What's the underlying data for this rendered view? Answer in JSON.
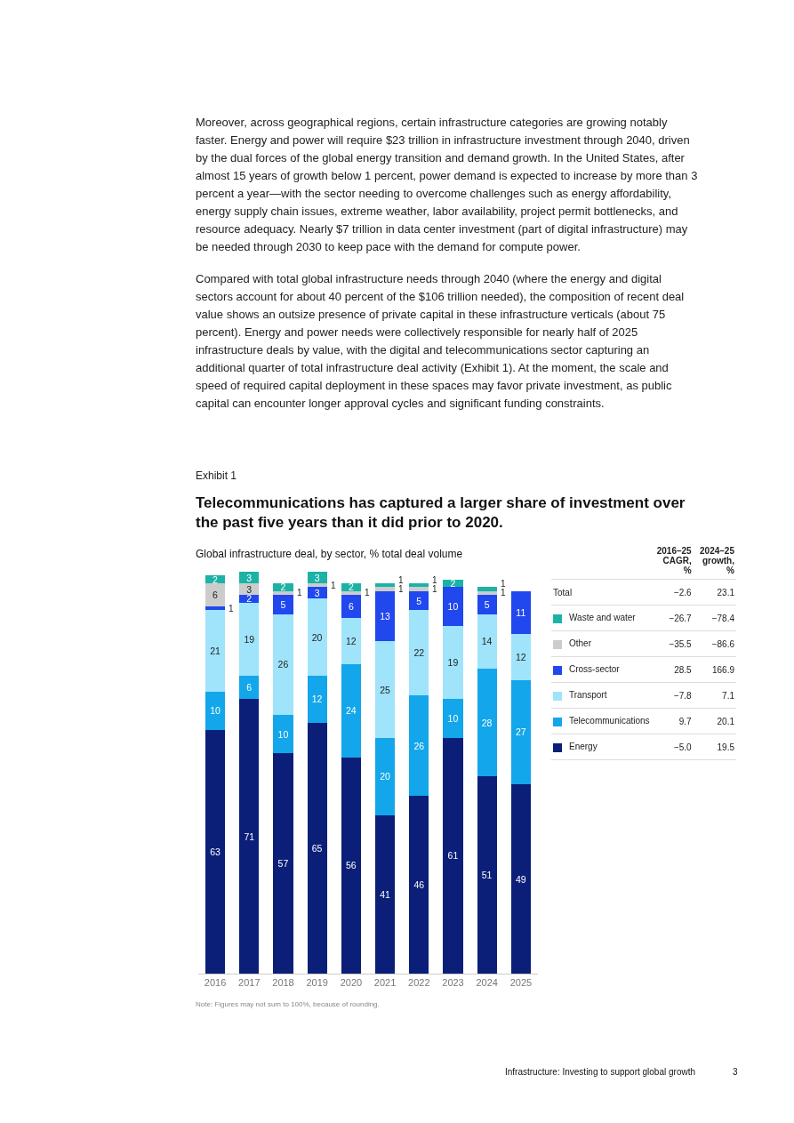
{
  "chart_data": [
    {
      "type": "bar",
      "stacked": true,
      "data_labels": true,
      "legend": false,
      "title": "Telecommunications has captured a larger share of investment over the past five years than it did prior to 2020.",
      "subtitle": "Global infrastructure deal, by sector, % total deal volume",
      "categories": [
        "2016",
        "2017",
        "2018",
        "2019",
        "2020",
        "2021",
        "2022",
        "2023",
        "2024",
        "2025"
      ],
      "series": [
        {
          "color": "#0b1f78",
          "values": [
            63,
            71,
            57,
            65,
            56,
            41,
            46,
            61,
            51,
            49
          ]
        },
        {
          "color": "#13a6ea",
          "values": [
            10,
            6,
            10,
            12,
            24,
            20,
            26,
            10,
            28,
            27
          ]
        },
        {
          "color": "#9fe4fb",
          "values": [
            21,
            19,
            26,
            20,
            12,
            25,
            22,
            19,
            14,
            12
          ]
        },
        {
          "color": "#2147ee",
          "values": [
            1,
            2,
            5,
            3,
            6,
            13,
            5,
            10,
            5,
            11
          ]
        },
        {
          "color": "#cccccc",
          "values": [
            6,
            3,
            1,
            1,
            1,
            1,
            1,
            null,
            1,
            null
          ]
        },
        {
          "color": "#1cb3a6",
          "values": [
            2,
            3,
            2,
            3,
            2,
            1,
            1,
            2,
            1,
            null
          ]
        }
      ],
      "annotations": [
        "Moreover, across geographical regions, certain infrastructure categories are growing notably faster. Energy and power will require $23 trillion in infrastructure investment through 2040, driven by the dual forces of the global energy transition and demand growth. In the United States, after almost 15 years of growth below 1 percent, power demand is expected to increase by more than 3 percent a year—with the sector needing to overcome challenges such as energy affordability, energy supply chain issues, extreme weather, labor availability, project permit bottlenecks, and resource adequacy. Nearly $7 trillion in data center investment (part of digital infrastructure) may be needed through 2030 to keep pace with the demand for compute power.",
        "Compared with total global infrastructure needs through 2040 (where the energy and digital sectors account for about 40 percent of the $106 trillion needed), the composition of recent deal value shows an outsize presence of private capital in these infrastructure verticals (about 75 percent). Energy and power needs were collectively responsible for nearly half of 2025 infrastructure deals by value, with the digital and telecommunications sector capturing an additional quarter of total infrastructure deal activity (Exhibit 1). At the moment, the scale and speed of required capital deployment in these spaces may favor private investment, as public capital can encounter longer approval cycles and significant funding constraints.",
        "Exhibit 1",
        "Note: Figures may not sum to 100%, because of rounding.",
        "Infrastructure: Investing to support global growth",
        "3"
      ]
    },
    {
      "type": "other",
      "categories": [
        "Total",
        "Waste and water",
        "Other",
        "Cross-sector",
        "Transport",
        "Telecommunications",
        "Energy"
      ],
      "colors": [
        null,
        "#1cb3a6",
        "#cccccc",
        "#2147ee",
        "#9fe4fb",
        "#13a6ea",
        "#0b1f78"
      ],
      "data_labels": true,
      "series": [
        {
          "name": "2016–25 CAGR, %",
          "values": [
            -2.6,
            -26.7,
            -35.5,
            28.5,
            -7.8,
            9.7,
            -5.0
          ],
          "value_labels": [
            "−2.6",
            "−26.7",
            "−35.5",
            "28.5",
            "−7.8",
            "9.7",
            "−5.0"
          ]
        },
        {
          "name": "2024–25 growth, %",
          "values": [
            23.1,
            -78.4,
            -86.6,
            166.9,
            7.1,
            20.1,
            19.5
          ]
        }
      ]
    }
  ]
}
